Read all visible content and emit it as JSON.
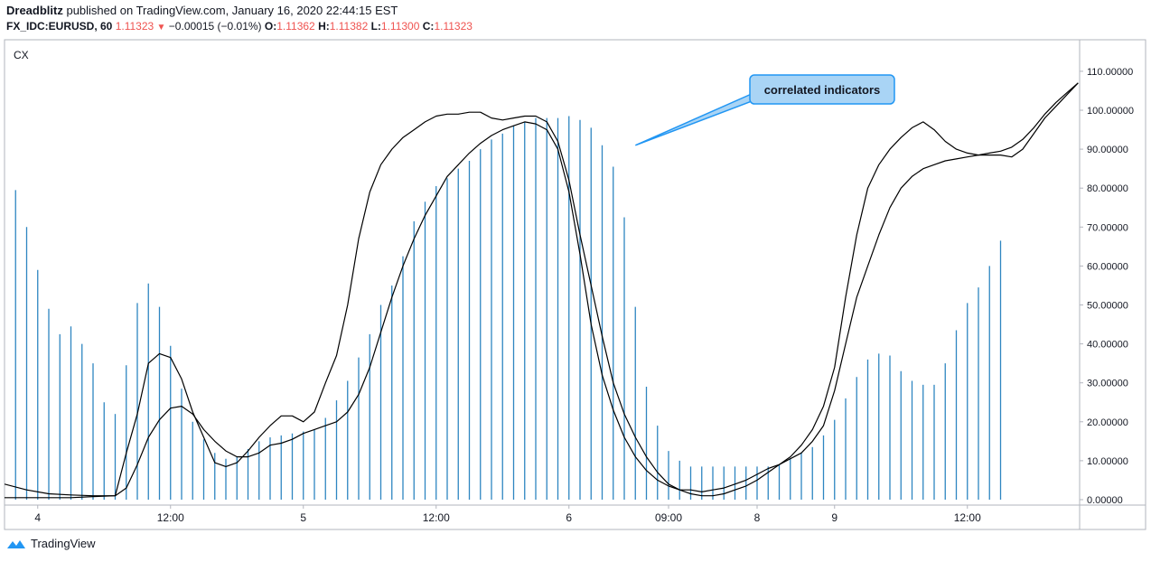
{
  "header": {
    "author": "Dreadblitz",
    "published_text": "published on TradingView.com, January 16, 2020 22:44:15 EST",
    "symbol": "FX_IDC:EURUSD, 60",
    "last_price": "1.11323",
    "change": "−0.00015 (−0.01%)",
    "open_label": "O:",
    "open": "1.11362",
    "high_label": "H:",
    "high": "1.11382",
    "low_label": "L:",
    "low": "1.11300",
    "close_label": "C:",
    "close": "1.11323",
    "down_arrow_icon": "triangle-down-icon"
  },
  "footer": {
    "brand": "TradingView",
    "logo_icon": "tradingview-cloud-icon"
  },
  "colors": {
    "histogram": "#2e86c1",
    "line": "#000000",
    "callout_fill": "#a9d4f5",
    "callout_border": "#2196f3",
    "red": "#ef5350"
  },
  "chart_data": {
    "type": "bar+line",
    "indicator_label": "CX",
    "annotation": "correlated indicators",
    "ylim": [
      0,
      120
    ],
    "yticks": [
      "0.00000",
      "10.00000",
      "20.00000",
      "30.00000",
      "40.00000",
      "50.00000",
      "60.00000",
      "70.00000",
      "80.00000",
      "90.00000",
      "100.00000",
      "110.00000"
    ],
    "ytick_values": [
      0,
      10,
      20,
      30,
      40,
      50,
      60,
      70,
      80,
      90,
      100,
      110
    ],
    "xticks": [
      {
        "label": "4",
        "x": 3
      },
      {
        "label": "12:00",
        "x": 15
      },
      {
        "label": "5",
        "x": 27
      },
      {
        "label": "12:00",
        "x": 39
      },
      {
        "label": "6",
        "x": 51
      },
      {
        "label": "09:00",
        "x": 60
      },
      {
        "label": "8",
        "x": 68
      },
      {
        "label": "9",
        "x": 75
      },
      {
        "label": "12:00",
        "x": 87
      }
    ],
    "histogram": {
      "x": [
        1,
        2,
        3,
        4,
        5,
        6,
        7,
        8,
        9,
        10,
        11,
        12,
        13,
        14,
        15,
        16,
        17,
        18,
        19,
        20,
        21,
        22,
        23,
        24,
        25,
        26,
        27,
        28,
        29,
        30,
        31,
        32,
        33,
        34,
        35,
        36,
        37,
        38,
        39,
        40,
        41,
        42,
        43,
        44,
        45,
        46,
        47,
        48,
        49,
        50,
        51,
        52,
        53,
        54,
        55,
        56,
        57,
        58,
        59,
        60,
        61,
        62,
        63,
        64,
        65,
        66,
        67,
        68,
        69,
        70,
        71,
        72,
        73,
        74,
        75,
        76,
        77,
        78,
        79,
        80,
        81,
        82,
        83,
        84,
        85,
        86,
        87,
        88,
        89,
        90,
        91,
        92,
        93,
        94,
        95,
        96
      ],
      "values": [
        79.5,
        70,
        59,
        49,
        42.5,
        44.5,
        40,
        35,
        25,
        22,
        34.5,
        50.5,
        55.5,
        49.5,
        39.5,
        28.5,
        20,
        15.5,
        12,
        10.5,
        11,
        13,
        15,
        16,
        16.5,
        17,
        17.5,
        18,
        21,
        25.5,
        30.5,
        36.5,
        42.5,
        50,
        55,
        62.5,
        71.5,
        76.5,
        80.5,
        82.5,
        85,
        87,
        90,
        92.5,
        94,
        96,
        97,
        98,
        98,
        98,
        98.5,
        97.5,
        95.5,
        91,
        85.5,
        72.5,
        49.5,
        29,
        19,
        12.5,
        10,
        8.5,
        8.5,
        8.5,
        8.5,
        8.5,
        8.5,
        8.5,
        8.5,
        9,
        10.5,
        12,
        13.5,
        16.5,
        20.5,
        26,
        31.5,
        36,
        37.5,
        37,
        33,
        30.5,
        29.5,
        29.5,
        35,
        43.5,
        50.5,
        54.5,
        60,
        66.5,
        0,
        0,
        0,
        0,
        0,
        0
      ]
    },
    "series": [
      {
        "x": [
          0,
          2,
          4,
          6,
          8,
          10,
          11,
          12,
          13,
          14,
          15,
          16,
          17,
          18,
          19,
          20,
          21,
          22,
          23,
          24,
          25,
          26,
          27,
          28,
          29,
          30,
          31,
          32,
          33,
          34,
          35,
          36,
          37,
          38,
          39,
          40,
          41,
          42,
          43,
          44,
          45,
          46,
          47,
          48,
          49,
          50,
          51,
          52,
          53,
          54,
          55,
          56,
          57,
          58,
          59,
          60,
          61,
          62,
          63,
          64,
          65,
          66,
          67,
          68,
          69,
          70,
          71,
          72,
          73,
          74,
          75,
          76,
          77,
          78,
          79,
          80,
          81,
          82,
          83,
          84,
          85,
          86,
          87,
          88,
          89,
          90,
          91,
          92,
          93,
          94,
          95,
          96,
          97
        ],
        "values": [
          4,
          2.5,
          1.5,
          1.2,
          1,
          1,
          12,
          22,
          35,
          37.5,
          36.5,
          31,
          22.5,
          16,
          9.5,
          8.5,
          9.5,
          12.5,
          16,
          19,
          21.5,
          21.5,
          20,
          22.5,
          30,
          37,
          50,
          67,
          79,
          86,
          90,
          93,
          95,
          97,
          98.5,
          99,
          99,
          99.5,
          99.5,
          98,
          97.5,
          98,
          98.5,
          98.5,
          97,
          92,
          82,
          68,
          55,
          42,
          30,
          22,
          16,
          11,
          7,
          4,
          2.5,
          1.5,
          1,
          1,
          1.5,
          2.5,
          3.5,
          5,
          7,
          9,
          11,
          14,
          18,
          24,
          34,
          52,
          68,
          80,
          86,
          90,
          93,
          95.5,
          97,
          95,
          92,
          90,
          89,
          88.5,
          88.5,
          88.5,
          88,
          90,
          94,
          98,
          101,
          104,
          107
        ]
      },
      {
        "x": [
          0,
          2,
          4,
          6,
          8,
          10,
          11,
          12,
          13,
          14,
          15,
          16,
          17,
          18,
          19,
          20,
          21,
          22,
          23,
          24,
          25,
          26,
          27,
          28,
          29,
          30,
          31,
          32,
          33,
          34,
          35,
          36,
          37,
          38,
          39,
          40,
          41,
          42,
          43,
          44,
          45,
          46,
          47,
          48,
          49,
          50,
          51,
          52,
          53,
          54,
          55,
          56,
          57,
          58,
          59,
          60,
          61,
          62,
          63,
          64,
          65,
          66,
          67,
          68,
          69,
          70,
          71,
          72,
          73,
          74,
          75,
          76,
          77,
          78,
          79,
          80,
          81,
          82,
          83,
          84,
          85,
          86,
          87,
          88,
          89,
          90,
          91,
          92,
          93,
          94,
          95,
          96,
          97
        ],
        "values": [
          0.5,
          0.5,
          0.5,
          0.5,
          0.8,
          1,
          3,
          9,
          16,
          20.5,
          23.5,
          24,
          22,
          18,
          15,
          12.5,
          11,
          11,
          12,
          14,
          14.5,
          15.5,
          17,
          18,
          19,
          20,
          22.5,
          27,
          34,
          43,
          52,
          60,
          67,
          73,
          78,
          83,
          86,
          89,
          91.5,
          93.5,
          95,
          96,
          97,
          96.5,
          95,
          90,
          79,
          63,
          45,
          32,
          23,
          16,
          11,
          7.5,
          5,
          3.5,
          2.5,
          2.5,
          2,
          2.5,
          3,
          4,
          5,
          6.5,
          8,
          9,
          10.5,
          12,
          15,
          19,
          28,
          40,
          52,
          60,
          68,
          75,
          80,
          83,
          85,
          86,
          87,
          87.5,
          88,
          88.5,
          89,
          89.5,
          90.5,
          92.5,
          95.5,
          99,
          102,
          104.5,
          107
        ]
      }
    ]
  }
}
